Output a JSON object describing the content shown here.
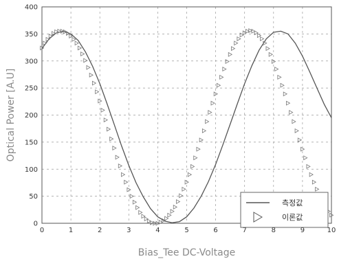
{
  "chart_data": {
    "type": "line",
    "xlabel": "Bias_Tee DC-Voltage",
    "ylabel": "Optical Power [A.U]",
    "xlim": [
      0,
      10
    ],
    "ylim": [
      0,
      400
    ],
    "xticks": [
      0,
      1,
      2,
      3,
      4,
      5,
      6,
      7,
      8,
      9,
      10
    ],
    "yticks": [
      0,
      50,
      100,
      150,
      200,
      250,
      300,
      350,
      400
    ],
    "grid": true,
    "legend_position": "bottom-right",
    "series": [
      {
        "name": "측정값",
        "style": "solid-line",
        "color": "#555555",
        "x": [
          0,
          0.25,
          0.5,
          0.75,
          1.0,
          1.25,
          1.5,
          1.75,
          2.0,
          2.25,
          2.5,
          2.75,
          3.0,
          3.25,
          3.5,
          3.75,
          4.0,
          4.25,
          4.5,
          4.75,
          5.0,
          5.25,
          5.5,
          5.75,
          6.0,
          6.25,
          6.5,
          6.75,
          7.0,
          7.25,
          7.5,
          7.75,
          8.0,
          8.25,
          8.5,
          8.75,
          9.0,
          9.25,
          9.5,
          9.75,
          10.0
        ],
        "y": [
          323,
          341,
          352,
          355,
          350,
          338,
          317,
          290,
          258,
          221,
          182,
          143,
          107,
          75,
          49,
          27,
          12,
          4,
          1,
          3,
          12,
          28,
          50,
          77,
          109,
          145,
          183,
          221,
          258,
          291,
          320,
          341,
          353,
          355,
          350,
          333,
          309,
          280,
          250,
          220,
          195
        ]
      },
      {
        "name": "이론값",
        "style": "triangle-markers",
        "color": "#777777",
        "x": [
          0,
          0.1,
          0.2,
          0.3,
          0.4,
          0.5,
          0.6,
          0.7,
          0.8,
          0.9,
          1.0,
          1.1,
          1.2,
          1.3,
          1.4,
          1.5,
          1.6,
          1.7,
          1.8,
          1.9,
          2.0,
          2.1,
          2.2,
          2.3,
          2.4,
          2.5,
          2.6,
          2.7,
          2.8,
          2.9,
          3.0,
          3.1,
          3.2,
          3.3,
          3.4,
          3.5,
          3.6,
          3.7,
          3.8,
          3.9,
          4.0,
          4.1,
          4.2,
          4.3,
          4.4,
          4.5,
          4.6,
          4.7,
          4.8,
          4.9,
          5.0,
          5.1,
          5.2,
          5.3,
          5.4,
          5.5,
          5.6,
          5.7,
          5.8,
          5.9,
          6.0,
          6.1,
          6.2,
          6.3,
          6.4,
          6.5,
          6.6,
          6.7,
          6.8,
          6.9,
          7.0,
          7.1,
          7.2,
          7.3,
          7.4,
          7.5,
          7.6,
          7.7,
          7.8,
          7.9,
          8.0,
          8.1,
          8.2,
          8.3,
          8.4,
          8.5,
          8.6,
          8.7,
          8.8,
          8.9,
          9.0,
          9.1,
          9.2,
          9.3,
          9.4,
          9.5,
          9.6,
          9.7,
          9.8,
          9.9,
          10.0
        ],
        "y": [
          324,
          333,
          340,
          346,
          351,
          354,
          355,
          355,
          354,
          351,
          346,
          340,
          333,
          324,
          313,
          301,
          288,
          274,
          259,
          243,
          226,
          209,
          191,
          174,
          156,
          139,
          122,
          106,
          90,
          76,
          62,
          50,
          39,
          29,
          20,
          13,
          8,
          4,
          1,
          0,
          0,
          2,
          5,
          9,
          15,
          22,
          30,
          40,
          51,
          63,
          76,
          90,
          105,
          121,
          137,
          154,
          171,
          188,
          205,
          222,
          239,
          255,
          270,
          285,
          299,
          312,
          323,
          333,
          341,
          348,
          352,
          355,
          356,
          355,
          352,
          347,
          341,
          333,
          323,
          312,
          299,
          285,
          270,
          255,
          239,
          222,
          205,
          188,
          171,
          154,
          137,
          121,
          105,
          90,
          76,
          63,
          51,
          40,
          30,
          22,
          15
        ]
      }
    ]
  }
}
